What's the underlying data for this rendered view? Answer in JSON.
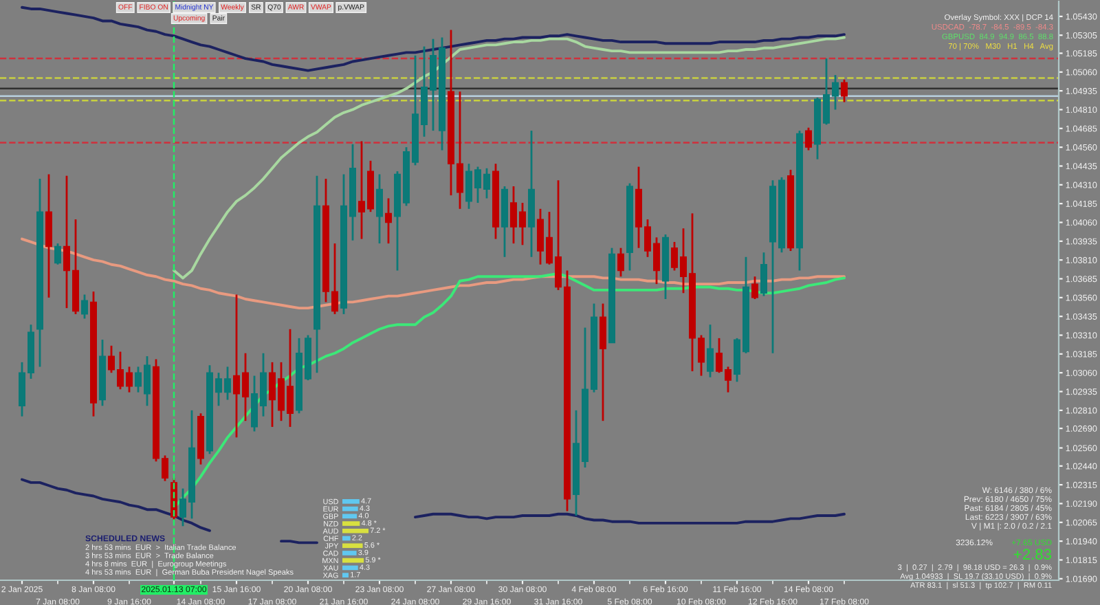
{
  "chart_data": [
    {
      "type": "candlestick",
      "categories": [
        "2 Jan 2025",
        null,
        null,
        null,
        "7 Jan 08:00",
        null,
        null,
        null,
        "8 Jan 08:00",
        null,
        null,
        null,
        "9 Jan 16:00",
        null,
        null,
        null,
        null,
        "2025.01.13 07:00",
        null,
        null,
        "14 Jan 08:00",
        null,
        null,
        null,
        "15 Jan 16:00",
        null,
        null,
        null,
        "17 Jan 08:00",
        null,
        null,
        null,
        "20 Jan 08:00",
        null,
        null,
        null,
        "21 Jan 16:00",
        null,
        null,
        null,
        "23 Jan 08:00",
        null,
        null,
        null,
        "24 Jan 08:00",
        null,
        null,
        null,
        "27 Jan 08:00",
        null,
        null,
        null,
        "29 Jan 16:00",
        null,
        null,
        null,
        "30 Jan 08:00",
        null,
        null,
        null,
        "31 Jan 16:00",
        null,
        null,
        null,
        "4 Feb 08:00",
        null,
        null,
        null,
        "5 Feb 08:00",
        null,
        null,
        null,
        "6 Feb 16:00",
        null,
        null,
        null,
        "10 Feb 08:00",
        null,
        null,
        null,
        "11 Feb 16:00",
        null,
        null,
        null,
        "12 Feb 16:00",
        null,
        null,
        null,
        "14 Feb 08:00",
        null,
        null,
        null,
        "17 Feb 08:00"
      ],
      "ohlc": [
        [
          1.0284,
          1.0313,
          1.0277,
          1.0306
        ],
        [
          1.0306,
          1.0338,
          1.0302,
          1.0333
        ],
        [
          1.0335,
          1.0435,
          1.031,
          1.0413
        ],
        [
          1.0413,
          1.0438,
          1.0356,
          1.039
        ],
        [
          1.0379,
          1.0392,
          1.0378,
          1.039
        ],
        [
          1.039,
          1.0437,
          1.0349,
          1.0374
        ],
        [
          1.0374,
          1.0408,
          1.0345,
          1.0347
        ],
        [
          1.0345,
          1.0358,
          1.0342,
          1.0354
        ],
        [
          1.0353,
          1.036,
          1.0277,
          1.0286
        ],
        [
          1.0288,
          1.0328,
          1.0284,
          1.0317
        ],
        [
          1.0317,
          1.0324,
          1.0306,
          1.0308
        ],
        [
          1.0308,
          1.032,
          1.0295,
          1.0297
        ],
        [
          1.0306,
          1.031,
          1.0293,
          1.0297
        ],
        [
          1.0297,
          1.031,
          1.0293,
          1.0306
        ],
        [
          1.0292,
          1.0317,
          1.0284,
          1.0311
        ],
        [
          1.031,
          1.0315,
          1.0247,
          1.0249
        ],
        [
          1.0249,
          1.0251,
          1.0234,
          1.0236
        ],
        [
          1.0233,
          1.0236,
          1.0208,
          1.021
        ],
        [
          1.021,
          1.0229,
          1.0204,
          1.0222
        ],
        [
          1.022,
          1.0281,
          1.0209,
          1.0256
        ],
        [
          1.0277,
          1.0279,
          1.0245,
          1.0249
        ],
        [
          1.0254,
          1.0311,
          1.0252,
          1.0306
        ],
        [
          1.0293,
          1.0306,
          1.0284,
          1.0302
        ],
        [
          1.0293,
          1.031,
          1.0288,
          1.0302
        ],
        [
          1.0304,
          1.0358,
          1.0263,
          1.0292
        ],
        [
          1.0306,
          1.0319,
          1.0274,
          1.029
        ],
        [
          1.027,
          1.0304,
          1.0267,
          1.0292
        ],
        [
          1.0284,
          1.0319,
          1.0277,
          1.0306
        ],
        [
          1.0306,
          1.0313,
          1.027,
          1.0288
        ],
        [
          1.0302,
          1.0313,
          1.0274,
          1.0281
        ],
        [
          1.0297,
          1.0335,
          1.027,
          1.0279
        ],
        [
          1.0281,
          1.0329,
          1.0279,
          1.0319
        ],
        [
          1.0302,
          1.0331,
          1.0301,
          1.0329
        ],
        [
          1.0335,
          1.0437,
          1.0306,
          1.0417
        ],
        [
          1.0417,
          1.0435,
          1.0353,
          1.036
        ],
        [
          1.036,
          1.0392,
          1.0345,
          1.0347
        ],
        [
          1.0349,
          1.0438,
          1.0345,
          1.0417
        ],
        [
          1.041,
          1.0458,
          1.0394,
          1.0442
        ],
        [
          1.042,
          1.046,
          1.0395,
          1.0413
        ],
        [
          1.044,
          1.0447,
          1.0413,
          1.0415
        ],
        [
          1.041,
          1.0438,
          1.0392,
          1.0428
        ],
        [
          1.0412,
          1.0422,
          1.0392,
          1.0406
        ],
        [
          1.041,
          1.044,
          1.0374,
          1.0438
        ],
        [
          1.0419,
          1.0456,
          1.0417,
          1.0453
        ],
        [
          1.0446,
          1.0517,
          1.0444,
          1.0478
        ],
        [
          1.0471,
          1.0523,
          1.0463,
          1.0496
        ],
        [
          1.0494,
          1.0528,
          1.0467,
          1.0517
        ],
        [
          1.0467,
          1.0529,
          1.0454,
          1.0522
        ],
        [
          1.0493,
          1.0534,
          1.0424,
          1.0445
        ],
        [
          1.0445,
          1.0493,
          1.0415,
          1.0426
        ],
        [
          1.042,
          1.0445,
          1.0415,
          1.044
        ],
        [
          1.0429,
          1.0443,
          1.0419,
          1.0441
        ],
        [
          1.0428,
          1.0442,
          1.0422,
          1.0438
        ],
        [
          1.044,
          1.0445,
          1.0395,
          1.0403
        ],
        [
          1.0403,
          1.043,
          1.0383,
          1.0428
        ],
        [
          1.0419,
          1.043,
          1.0392,
          1.0403
        ],
        [
          1.0413,
          1.0419,
          1.0391,
          1.0403
        ],
        [
          1.0403,
          1.0467,
          1.0383,
          1.0428
        ],
        [
          1.0408,
          1.0415,
          1.0378,
          1.0387
        ],
        [
          1.0396,
          1.0413,
          1.0378,
          1.0379
        ],
        [
          1.0383,
          1.0434,
          1.0361,
          1.0363
        ],
        [
          1.0363,
          1.0374,
          1.0214,
          1.0222
        ],
        [
          1.0225,
          1.0281,
          1.0211,
          1.0259
        ],
        [
          1.0247,
          1.0336,
          1.0243,
          1.0295
        ],
        [
          1.0295,
          1.0352,
          1.0293,
          1.0343
        ],
        [
          1.0343,
          1.0352,
          1.0274,
          1.0322
        ],
        [
          1.0326,
          1.0389,
          1.0326,
          1.0385
        ],
        [
          1.0385,
          1.0389,
          1.037,
          1.0374
        ],
        [
          1.0386,
          1.0432,
          1.0374,
          1.043
        ],
        [
          1.0428,
          1.0443,
          1.0389,
          1.0403
        ],
        [
          1.0403,
          1.0408,
          1.0383,
          1.0387
        ],
        [
          1.0392,
          1.0396,
          1.0365,
          1.0374
        ],
        [
          1.0367,
          1.0398,
          1.0355,
          1.0396
        ],
        [
          1.0389,
          1.0393,
          1.0374,
          1.0376
        ],
        [
          1.0383,
          1.0402,
          1.0359,
          1.037
        ],
        [
          1.0372,
          1.0412,
          1.0307,
          1.0329
        ],
        [
          1.0329,
          1.0331,
          1.0304,
          1.0313
        ],
        [
          1.0307,
          1.0338,
          1.0303,
          1.0322
        ],
        [
          1.0319,
          1.0329,
          1.0306,
          1.0307
        ],
        [
          1.0308,
          1.031,
          1.0293,
          1.0301
        ],
        [
          1.0305,
          1.0329,
          1.03,
          1.0328
        ],
        [
          1.032,
          1.0383,
          1.0319,
          1.0363
        ],
        [
          1.0365,
          1.037,
          1.0355,
          1.0356
        ],
        [
          1.0359,
          1.0386,
          1.0357,
          1.0378
        ],
        [
          1.0393,
          1.0434,
          1.0319,
          1.043
        ],
        [
          1.0389,
          1.0436,
          1.0386,
          1.0434
        ],
        [
          1.0437,
          1.0441,
          1.0387,
          1.0389
        ],
        [
          1.0389,
          1.0467,
          1.0374,
          1.0465
        ],
        [
          1.0467,
          1.0469,
          1.0454,
          1.0456
        ],
        [
          1.0458,
          1.0489,
          1.0448,
          1.0488
        ],
        [
          1.0472,
          1.0515,
          1.0471,
          1.0491
        ],
        [
          1.049,
          1.0504,
          1.0481,
          1.0499
        ],
        [
          1.0499,
          1.0501,
          1.0486,
          1.049
        ]
      ],
      "colors": [
        "#0b7a78",
        "#0b7a78",
        "#0b7a78",
        "#c00000",
        "#0b7a78",
        "#c00000",
        "#c00000",
        "#0b7a78",
        "#c00000",
        "#0b7a78",
        "#c00000",
        "#c00000",
        "#c00000",
        "#0b7a78",
        "#0b7a78",
        "#c00000",
        "#c00000",
        "#c00000",
        "#0b7a78",
        "#0b7a78",
        "#c00000",
        "#0b7a78",
        "#0b7a78",
        "#0b7a78",
        "#c00000",
        "#c00000",
        "#0b7a78",
        "#0b7a78",
        "#c00000",
        "#c00000",
        "#c00000",
        "#0b7a78",
        "#0b7a78",
        "#0b7a78",
        "#c00000",
        "#c00000",
        "#0b7a78",
        "#0b7a78",
        "#c00000",
        "#c00000",
        "#0b7a78",
        "#c00000",
        "#0b7a78",
        "#0b7a78",
        "#0b7a78",
        "#0b7a78",
        "#0b7a78",
        "#0b7a78",
        "#c00000",
        "#c00000",
        "#0b7a78",
        "#0b7a78",
        "#0b7a78",
        "#c00000",
        "#0b7a78",
        "#c00000",
        "#c00000",
        "#0b7a78",
        "#c00000",
        "#c00000",
        "#c00000",
        "#c00000",
        "#0b7a78",
        "#0b7a78",
        "#0b7a78",
        "#c00000",
        "#0b7a78",
        "#c00000",
        "#0b7a78",
        "#c00000",
        "#c00000",
        "#c00000",
        "#0b7a78",
        "#c00000",
        "#c00000",
        "#c00000",
        "#c00000",
        "#0b7a78",
        "#c00000",
        "#c00000",
        "#0b7a78",
        "#0b7a78",
        "#c00000",
        "#0b7a78",
        "#0b7a78",
        "#0b7a78",
        "#c00000",
        "#0b7a78",
        "#c00000",
        "#0b7a78",
        "#0b7a78",
        "#0b7a78",
        "#c00000"
      ],
      "series": [
        {
          "type": "line",
          "color": "#1c2260",
          "values": [
            1.0549,
            1.0548,
            1.0548,
            1.0547,
            1.0546,
            1.0545,
            1.0544,
            1.0543,
            1.0542,
            1.054,
            1.054,
            1.0538,
            1.0537,
            1.0536,
            1.0534,
            1.0533,
            1.0531,
            1.053,
            1.0528,
            1.0526,
            1.0524,
            1.0523,
            1.0521,
            1.0519,
            1.0517,
            1.0515,
            1.0514,
            1.0513,
            1.0511,
            1.051,
            1.0509,
            1.0508,
            1.0507,
            1.0508,
            1.0509,
            1.051,
            1.0511,
            1.0513,
            1.0514,
            1.0515,
            1.0516,
            1.0517,
            1.0518,
            1.0519,
            1.0519,
            1.052,
            1.0521,
            1.0522,
            1.0523,
            1.0524,
            1.0525,
            1.0526,
            1.0527,
            1.0527,
            1.0528,
            1.0528,
            1.0529,
            1.0529,
            1.0529,
            1.053,
            1.053,
            1.0531,
            1.053,
            1.0529,
            1.0528,
            1.0527,
            1.0527,
            1.0526,
            1.0526,
            1.0526,
            1.0526,
            1.0526,
            1.0525,
            1.0525,
            1.0525,
            1.0525,
            1.0525,
            1.0525,
            1.0526,
            1.0526,
            1.0526,
            1.0526,
            1.0526,
            1.0527,
            1.0527,
            1.0528,
            1.0528,
            1.0529,
            1.0529,
            1.053,
            1.053,
            1.053,
            1.0531
          ]
        },
        {
          "type": "line",
          "color": "#1c2260",
          "values": [
            1.0235,
            1.0233,
            1.0233,
            1.0231,
            1.0229,
            1.0228,
            1.0226,
            1.0225,
            1.0224,
            1.0222,
            1.0221,
            1.022,
            1.0218,
            1.0217,
            1.0215,
            1.0215,
            1.0213,
            1.0211,
            1.0208,
            1.0206,
            1.0203,
            1.0201,
            null,
            null,
            null,
            null,
            null,
            null,
            null,
            1.0194,
            1.0194,
            1.0193,
            1.0193,
            1.0193,
            null,
            null,
            null,
            null,
            null,
            null,
            null,
            null,
            null,
            null,
            1.021,
            1.0211,
            1.0212,
            1.0212,
            1.0212,
            1.0211,
            1.021,
            1.021,
            1.0209,
            1.021,
            1.021,
            1.021,
            1.0211,
            1.0211,
            1.0211,
            1.0211,
            1.0212,
            1.0212,
            1.0211,
            1.0209,
            1.0208,
            1.0208,
            1.0207,
            1.0207,
            1.0207,
            1.0206,
            1.0206,
            1.0206,
            1.0206,
            1.0206,
            1.0206,
            1.0206,
            1.0206,
            1.0206,
            1.0206,
            1.0206,
            1.0206,
            1.0207,
            1.0207,
            1.0207,
            1.0207,
            1.0208,
            1.0209,
            1.0209,
            1.021,
            1.0211,
            1.0211,
            1.0211,
            1.0212
          ]
        },
        {
          "type": "line",
          "color": "#e89a80",
          "values": [
            1.0395,
            1.0393,
            1.0391,
            1.0389,
            1.0388,
            1.0387,
            1.0385,
            1.0383,
            1.0381,
            1.038,
            1.0378,
            1.0377,
            1.0375,
            1.0373,
            1.0371,
            1.037,
            1.0368,
            1.0367,
            1.0365,
            1.0364,
            1.0362,
            1.0361,
            1.0359,
            1.0358,
            1.0357,
            1.0355,
            1.0354,
            1.0353,
            1.0352,
            1.0351,
            1.035,
            1.0349,
            1.0349,
            1.035,
            1.0351,
            1.0352,
            1.0353,
            1.0353,
            1.0354,
            1.0355,
            1.0356,
            1.0357,
            1.0357,
            1.0358,
            1.0359,
            1.036,
            1.0361,
            1.0362,
            1.0363,
            1.0364,
            1.0364,
            1.0365,
            1.0366,
            1.0366,
            1.0367,
            1.0368,
            1.0368,
            1.0369,
            1.037,
            1.037,
            1.037,
            1.037,
            1.037,
            1.037,
            1.037,
            1.0369,
            1.0369,
            1.0368,
            1.0368,
            1.0368,
            1.0367,
            1.0367,
            1.0366,
            1.0366,
            1.0365,
            1.0365,
            1.0365,
            1.0365,
            1.0365,
            1.0366,
            1.0366,
            1.0366,
            1.0367,
            1.0367,
            1.0367,
            1.0368,
            1.0368,
            1.0369,
            1.0369,
            1.037,
            1.037,
            1.037,
            1.037
          ]
        },
        {
          "type": "line",
          "color": "#3ce878",
          "values": [
            null,
            null,
            null,
            null,
            null,
            null,
            null,
            null,
            null,
            null,
            null,
            null,
            null,
            null,
            null,
            null,
            null,
            1.0216,
            1.0223,
            1.0229,
            1.0237,
            1.0246,
            1.0254,
            1.0263,
            1.027,
            1.0277,
            1.0284,
            1.0291,
            1.0295,
            1.03,
            1.0304,
            1.0309,
            1.0311,
            1.0314,
            1.0317,
            1.0319,
            1.0322,
            1.0326,
            1.0329,
            1.0332,
            1.0335,
            1.0337,
            1.0338,
            1.0338,
            1.0338,
            1.0343,
            1.0346,
            1.0351,
            1.0357,
            1.0367,
            1.0368,
            1.037,
            1.037,
            1.037,
            1.037,
            1.037,
            1.037,
            1.037,
            1.037,
            1.0371,
            1.0372,
            1.037,
            1.0367,
            1.0364,
            1.0361,
            1.0361,
            1.0361,
            1.0361,
            1.0361,
            1.0361,
            1.0361,
            1.0361,
            1.0362,
            1.0362,
            1.0362,
            1.0363,
            1.0363,
            1.0363,
            1.0362,
            1.0362,
            1.0361,
            1.0361,
            1.036,
            1.0359,
            1.0359,
            1.036,
            1.0361,
            1.0362,
            1.0364,
            1.0365,
            1.0366,
            1.0368,
            1.0369
          ]
        },
        {
          "type": "line",
          "color": "#a8d8a0",
          "values": [
            null,
            null,
            null,
            null,
            null,
            null,
            null,
            null,
            null,
            null,
            null,
            null,
            null,
            null,
            null,
            null,
            null,
            1.0374,
            1.0369,
            1.0374,
            1.0385,
            1.0395,
            1.0404,
            1.0413,
            1.042,
            1.0424,
            1.0429,
            1.0435,
            1.0442,
            1.0449,
            1.0454,
            1.0459,
            1.0463,
            1.0466,
            1.0471,
            1.0476,
            1.0479,
            1.0481,
            1.0484,
            1.0486,
            1.0488,
            1.049,
            1.0492,
            1.0495,
            1.0499,
            1.0503,
            1.0506,
            1.0511,
            1.0516,
            1.0521,
            1.0522,
            1.0523,
            1.0524,
            1.0524,
            1.0525,
            1.0526,
            1.0526,
            1.0527,
            1.0527,
            1.0528,
            1.0528,
            1.0528,
            1.0526,
            1.0523,
            1.0522,
            1.0521,
            1.052,
            1.052,
            1.0519,
            1.0519,
            1.0519,
            1.0519,
            1.0519,
            1.0519,
            1.0519,
            1.0519,
            1.0519,
            1.0519,
            1.0519,
            1.052,
            1.052,
            1.0521,
            1.0521,
            1.0522,
            1.0522,
            1.0523,
            1.0524,
            1.0525,
            1.0526,
            1.0527,
            1.0528,
            1.0528,
            1.0529
          ]
        }
      ],
      "ylim": [
        1.0168,
        1.0553
      ],
      "yticks": [
        {
          "value": 1.0543,
          "label": "1.05430"
        },
        {
          "value": 1.05305,
          "label": "1.05305"
        },
        {
          "value": 1.05185,
          "label": "1.05185"
        },
        {
          "value": 1.0506,
          "label": "1.05060"
        },
        {
          "value": 1.04935,
          "label": "1.04935"
        },
        {
          "value": 1.0481,
          "label": "1.04810"
        },
        {
          "value": 1.04685,
          "label": "1.04685"
        },
        {
          "value": 1.0456,
          "label": "1.04560"
        },
        {
          "value": 1.04435,
          "label": "1.04435"
        },
        {
          "value": 1.0431,
          "label": "1.04310"
        },
        {
          "value": 1.04185,
          "label": "1.04185"
        },
        {
          "value": 1.0406,
          "label": "1.04060"
        },
        {
          "value": 1.03935,
          "label": "1.03935"
        },
        {
          "value": 1.0381,
          "label": "1.03810"
        },
        {
          "value": 1.03685,
          "label": "1.03685"
        },
        {
          "value": 1.0356,
          "label": "1.03560"
        },
        {
          "value": 1.03435,
          "label": "1.03435"
        },
        {
          "value": 1.0331,
          "label": "1.03310"
        },
        {
          "value": 1.03185,
          "label": "1.03185"
        },
        {
          "value": 1.0306,
          "label": "1.03060"
        },
        {
          "value": 1.02935,
          "label": "1.02935"
        },
        {
          "value": 1.0281,
          "label": "1.02810"
        },
        {
          "value": 1.0269,
          "label": "1.02690"
        },
        {
          "value": 1.0256,
          "label": "1.02560"
        },
        {
          "value": 1.0244,
          "label": "1.02440"
        },
        {
          "value": 1.02315,
          "label": "1.02315"
        },
        {
          "value": 1.0219,
          "label": "1.02190"
        },
        {
          "value": 1.02065,
          "label": "1.02065"
        },
        {
          "value": 1.0194,
          "label": "1.01940"
        },
        {
          "value": 1.01815,
          "label": "1.01815"
        },
        {
          "value": 1.0169,
          "label": "1.01690"
        }
      ],
      "ref_lines": [
        {
          "axis": "x",
          "value": "2025.01.13 07:00",
          "color": "#22ee66",
          "line_style": "dashed"
        },
        {
          "axis": "y",
          "value": 1.0515,
          "color": "#d0303c",
          "line_style": "dashed"
        },
        {
          "axis": "y",
          "value": 1.0502,
          "color": "#c8d040",
          "line_style": "dashed"
        },
        {
          "axis": "y",
          "value": 1.0495,
          "color": "#303030",
          "line_style": "solid"
        },
        {
          "axis": "y",
          "value": 1.049,
          "color": "#b8d0e0",
          "line_style": "solid"
        },
        {
          "axis": "y",
          "value": 1.0487,
          "color": "#c8d040",
          "line_style": "dashed"
        },
        {
          "axis": "y",
          "value": 1.0459,
          "color": "#d0303c",
          "line_style": "dashed"
        }
      ],
      "annotations": [
        "SCHEDULED NEWS",
        "2 hrs 53 mins  EUR  >  Italian Trade Balance",
        "3 hrs 53 mins  EUR  >  Trade Balance",
        "4 hrs 8 mins  EUR  |  Eurogroup Meetings",
        "4 hrs 53 mins  EUR  |  German Buba President Nagel Speaks",
        "Overlay Symbol: XXX | DCP 14",
        "USDCAD  -78.7  -84.5  -89.5  -84.3",
        "GBPUSD  84.9  94.9  86.5  88.8",
        "70 | 70%   M30   H1   H4   Avg",
        "W: 6146 / 380 / 6%",
        "Prev: 6180 / 4650 / 75%",
        "Past: 6184 / 2805 / 45%",
        "Last: 6223 / 3907 / 63%",
        "V | M1 |: 2.0 / 0.2 / 2.1",
        "3236.12%",
        "+7.65 USD",
        "+2.83",
        "3  |  0.27  |  2.79  |  98.18 USD = 26.3  |  0.9%",
        "Avg 1.04933  |  SL 19.7 (33.10 USD)  |  0.9%",
        "ATR 83.1  |  sl 51.3  |  tp 102.7  |  RM 0.11",
        "OFF",
        "FIBO ON",
        "Midnight NY",
        "Weekly",
        "SR",
        "Q70",
        "AWR",
        "VWAP",
        "p.VWAP",
        "Upcoming",
        "Pair"
      ],
      "grid": false
    },
    {
      "type": "bar",
      "orientation": "horizontal",
      "categories": [
        "USD",
        "EUR",
        "GBP",
        "NZD",
        "AUD",
        "CHF",
        "JPY",
        "CAD",
        "MXN",
        "XAU",
        "XAG"
      ],
      "values": [
        4.7,
        4.3,
        4.0,
        4.8,
        7.2,
        2.2,
        5.6,
        3.9,
        5.9,
        4.3,
        1.7
      ],
      "value_labels": [
        "4.7",
        "4.3",
        "4.0",
        "4.8 *",
        "7.2 *",
        "2.2",
        "5.6 *",
        "3.9",
        "5.9 *",
        "4.3",
        "1.7"
      ],
      "colors": [
        "#60c8f0",
        "#60c8f0",
        "#60c8f0",
        "#d8e040",
        "#d8e040",
        "#60c8f0",
        "#d8e040",
        "#60c8f0",
        "#d8e040",
        "#60c8f0",
        "#60c8f0"
      ]
    }
  ]
}
